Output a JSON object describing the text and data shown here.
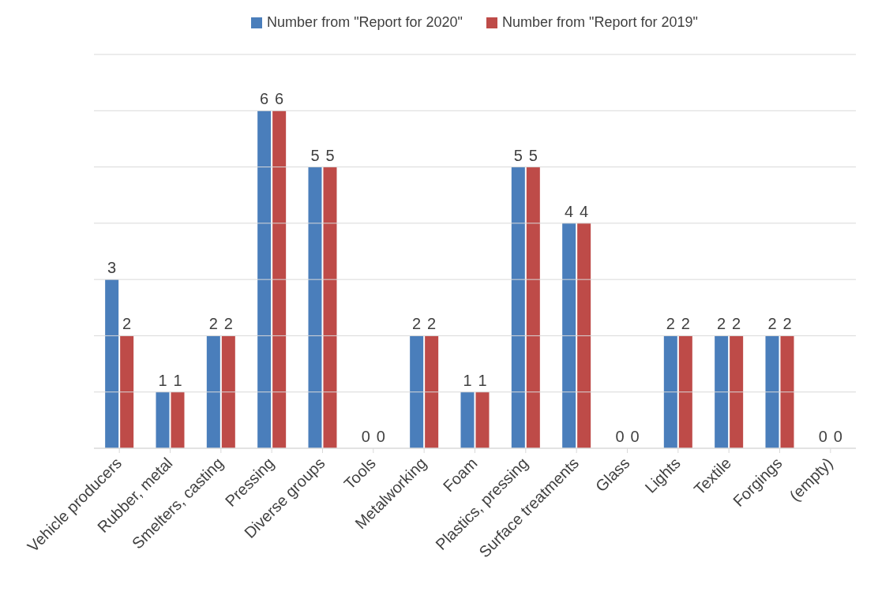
{
  "chart_data": {
    "type": "bar",
    "categories": [
      "Vehicle producers",
      "Rubber, metal",
      "Smelters, casting",
      "Pressing",
      "Diverse groups",
      "Tools",
      "Metalworking",
      "Foam",
      "Plastics, pressing",
      "Surface treatments",
      "Glass",
      "Lights",
      "Textile",
      "Forgings",
      "(empty)"
    ],
    "series": [
      {
        "name": "Number from \"Report for 2020\"",
        "color": "#4a7ebb",
        "values": [
          3,
          1,
          2,
          6,
          5,
          0,
          2,
          1,
          5,
          4,
          0,
          2,
          2,
          2,
          0
        ]
      },
      {
        "name": "Number from \"Report for 2019\"",
        "color": "#be4b48",
        "values": [
          2,
          1,
          2,
          6,
          5,
          0,
          2,
          1,
          5,
          4,
          0,
          2,
          2,
          2,
          0
        ]
      }
    ],
    "ylim": [
      0,
      7
    ],
    "yticks": [
      {
        "value": 0,
        "label": null
      },
      {
        "value": 1,
        "label": null
      },
      {
        "value": 2,
        "label": null
      },
      {
        "value": 3,
        "label": null
      },
      {
        "value": 4,
        "label": null
      },
      {
        "value": 5,
        "label": null
      },
      {
        "value": 6,
        "label": null
      },
      {
        "value": 7,
        "label": null
      }
    ],
    "grid": "y",
    "legend": "top",
    "tick_labels": "x",
    "data_labels": true
  }
}
